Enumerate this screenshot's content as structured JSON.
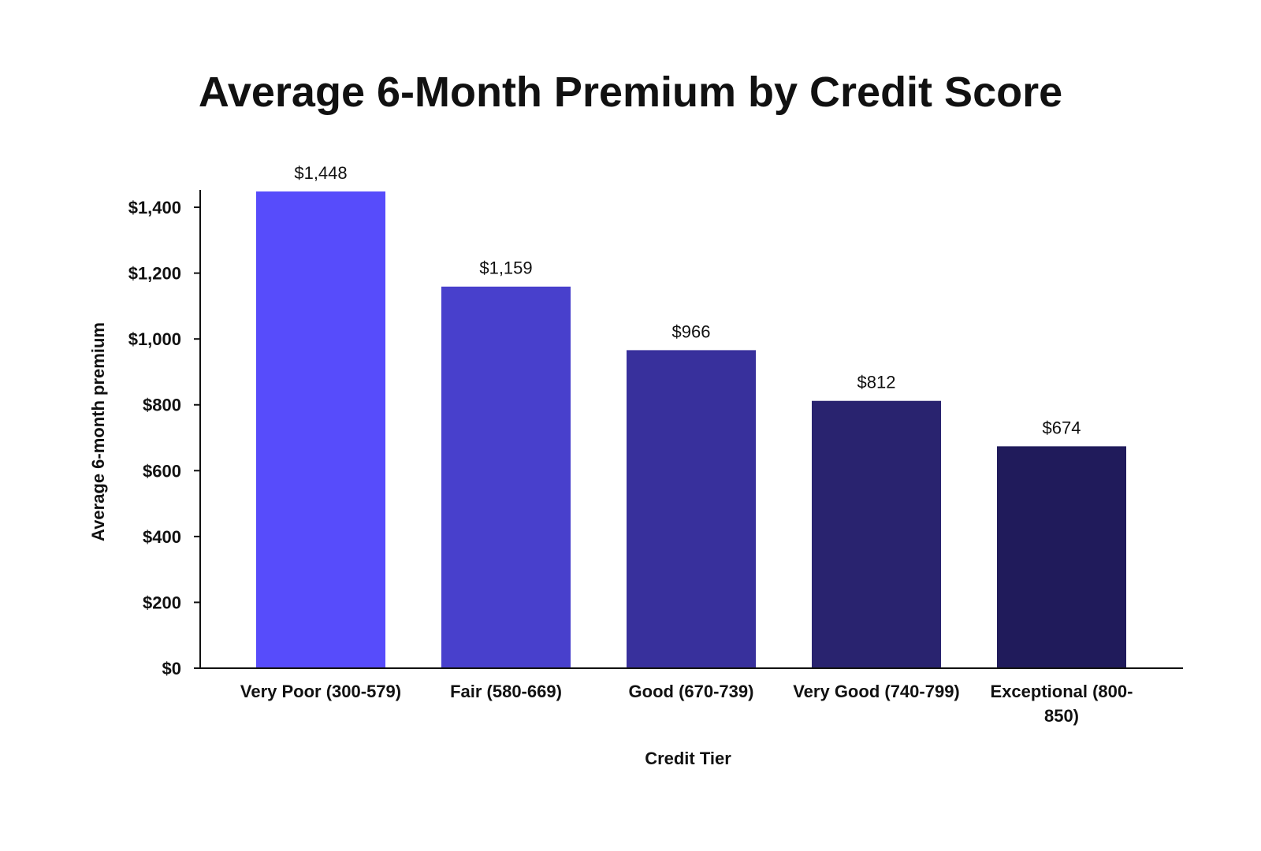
{
  "chart_data": {
    "type": "bar",
    "title": "Average 6-Month Premium by Credit Score",
    "xlabel": "Credit Tier",
    "ylabel": "Average 6-month premium",
    "categories": [
      "Very Poor (300-579)",
      "Fair (580-669)",
      "Good (670-739)",
      "Very Good (740-799)",
      "Exceptional (800-850)"
    ],
    "category_lines": [
      [
        "Very Poor (300-579)"
      ],
      [
        "Fair (580-669)"
      ],
      [
        "Good (670-739)"
      ],
      [
        "Very Good (740-799)"
      ],
      [
        "Exceptional (800-",
        "850)"
      ]
    ],
    "values": [
      1448,
      1159,
      966,
      812,
      674
    ],
    "data_labels": [
      "$1,448",
      "$1,159",
      "$966",
      "$812",
      "$674"
    ],
    "bar_colors": [
      "#574cfb",
      "#4840cc",
      "#38309c",
      "#29236f",
      "#201b5b"
    ],
    "ylim": [
      0,
      1448
    ],
    "yticks": [
      0,
      200,
      400,
      600,
      800,
      1000,
      1200,
      1400
    ],
    "ytick_labels": [
      "$0",
      "$200",
      "$400",
      "$600",
      "$800",
      "$1,000",
      "$1,200",
      "$1,400"
    ],
    "grid": false,
    "legend": "none"
  }
}
